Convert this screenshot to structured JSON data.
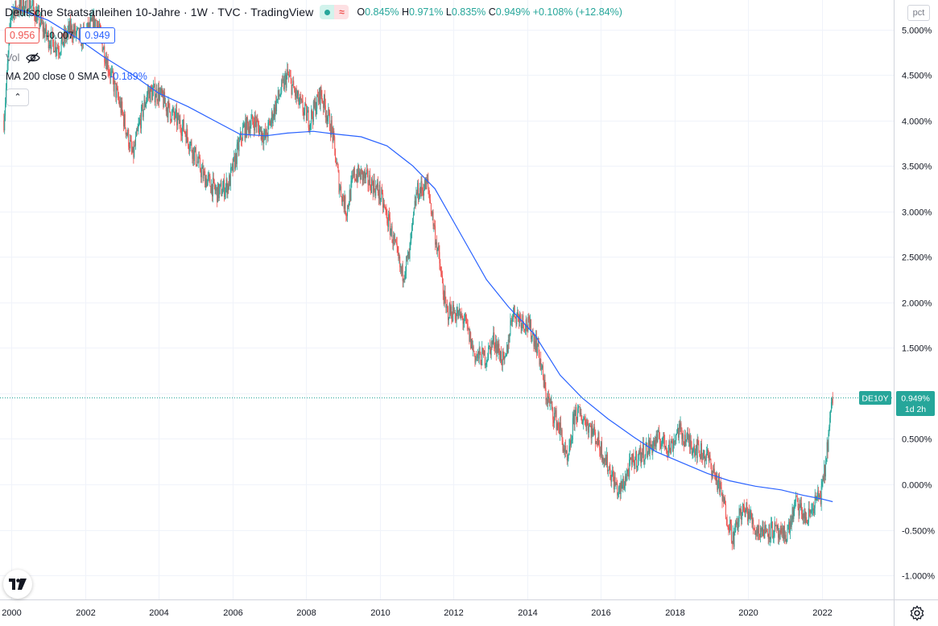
{
  "header": {
    "title": "Deutsche Staatsanleihen 10-Jahre · 1W · TVC · TradingView",
    "ohlc": {
      "o_label": "O",
      "o": "0.845%",
      "h_label": "H",
      "h": "0.971%",
      "l_label": "L",
      "l": "0.835%",
      "c_label": "C",
      "c": "0.949%",
      "change": "+0.108% (+12.84%)"
    }
  },
  "price_row": {
    "sell": "0.956",
    "spread": "-0.007",
    "buy": "0.949"
  },
  "volume": {
    "label": "Vol"
  },
  "indicator": {
    "label": "MA 200 close 0 SMA 5",
    "value": "-0.189%"
  },
  "axis_unit": "pct",
  "last_price": {
    "symbol": "DE10Y",
    "value": "0.949%",
    "countdown": "1d 2h"
  },
  "colors": {
    "up": "#26a69a",
    "down": "#ef5350",
    "ma": "#2962ff",
    "grid": "#f0f3fa",
    "label_bg": "#26a69a"
  },
  "icons": {
    "logo": "tradingview-logo-icon",
    "settings": "gear-icon",
    "hide": "eye-off-icon",
    "collapse": "chevron-up-icon"
  },
  "chart_data": {
    "type": "line",
    "title": "Deutsche Staatsanleihen 10-Jahre",
    "ylabel": "pct",
    "ylim": [
      -1.2,
      5.4
    ],
    "xlim": [
      2000.0,
      2023.0
    ],
    "y_ticks": [
      "5.000%",
      "4.500%",
      "4.000%",
      "3.500%",
      "3.000%",
      "2.500%",
      "2.000%",
      "1.500%",
      "1.000%",
      "0.500%",
      "0.000%",
      "-0.500%",
      "-1.000%"
    ],
    "y_tick_values": [
      5.0,
      4.5,
      4.0,
      3.5,
      3.0,
      2.5,
      2.0,
      1.5,
      1.0,
      0.5,
      0.0,
      -0.5,
      -1.0
    ],
    "x_ticks": [
      "2000",
      "2002",
      "2004",
      "2006",
      "2008",
      "2010",
      "2012",
      "2014",
      "2016",
      "2018",
      "2020",
      "2022"
    ],
    "x_tick_values": [
      2000,
      2002,
      2004,
      2006,
      2008,
      2010,
      2012,
      2014,
      2016,
      2018,
      2020,
      2022
    ],
    "series": [
      {
        "name": "DE10Y",
        "style": "candles",
        "x": [
          1999.8,
          2000.0,
          2000.5,
          2001.0,
          2001.3,
          2001.6,
          2001.9,
          2002.3,
          2002.7,
          2003.0,
          2003.3,
          2003.5,
          2003.7,
          2004.0,
          2004.3,
          2004.7,
          2005.0,
          2005.2,
          2005.6,
          2005.9,
          2006.3,
          2006.6,
          2006.9,
          2007.2,
          2007.5,
          2007.8,
          2008.1,
          2008.4,
          2008.7,
          2008.9,
          2009.1,
          2009.3,
          2009.5,
          2009.8,
          2010.0,
          2010.3,
          2010.6,
          2010.8,
          2011.0,
          2011.3,
          2011.6,
          2011.8,
          2012.0,
          2012.3,
          2012.6,
          2012.9,
          2013.1,
          2013.4,
          2013.6,
          2013.9,
          2014.1,
          2014.3,
          2014.5,
          2014.7,
          2014.9,
          2015.1,
          2015.3,
          2015.6,
          2015.9,
          2016.2,
          2016.5,
          2016.8,
          2017.0,
          2017.3,
          2017.6,
          2017.9,
          2018.1,
          2018.3,
          2018.6,
          2018.9,
          2019.2,
          2019.4,
          2019.6,
          2019.8,
          2020.0,
          2020.2,
          2020.4,
          2020.7,
          2020.9,
          2021.1,
          2021.3,
          2021.6,
          2021.8,
          2022.0,
          2022.1,
          2022.2,
          2022.3
        ],
        "y": [
          4.0,
          5.2,
          5.3,
          4.9,
          4.8,
          5.0,
          4.9,
          5.1,
          4.5,
          4.1,
          3.6,
          4.0,
          4.3,
          4.3,
          4.1,
          3.9,
          3.6,
          3.4,
          3.2,
          3.3,
          3.9,
          4.0,
          3.8,
          4.2,
          4.5,
          4.2,
          4.0,
          4.3,
          3.9,
          3.3,
          3.0,
          3.4,
          3.4,
          3.3,
          3.2,
          2.8,
          2.3,
          2.5,
          3.2,
          3.3,
          2.5,
          1.9,
          1.9,
          1.8,
          1.4,
          1.4,
          1.6,
          1.3,
          1.9,
          1.8,
          1.7,
          1.5,
          1.0,
          0.8,
          0.6,
          0.2,
          0.8,
          0.7,
          0.5,
          0.2,
          -0.1,
          0.2,
          0.3,
          0.4,
          0.5,
          0.4,
          0.6,
          0.5,
          0.4,
          0.3,
          0.0,
          -0.3,
          -0.6,
          -0.3,
          -0.3,
          -0.5,
          -0.5,
          -0.5,
          -0.6,
          -0.5,
          -0.2,
          -0.4,
          -0.2,
          -0.1,
          0.2,
          0.6,
          0.95
        ]
      },
      {
        "name": "MA 200 close 0 SMA 5",
        "style": "line",
        "x": [
          2000.0,
          2001.0,
          2001.8,
          2002.5,
          2003.3,
          2004.0,
          2004.8,
          2005.5,
          2006.2,
          2006.9,
          2007.5,
          2008.2,
          2008.8,
          2009.5,
          2010.2,
          2010.9,
          2011.5,
          2012.2,
          2012.9,
          2013.5,
          2014.2,
          2014.9,
          2015.5,
          2016.2,
          2016.9,
          2017.5,
          2018.2,
          2018.9,
          2019.5,
          2020.2,
          2020.9,
          2021.5,
          2022.0,
          2022.3
        ],
        "y": [
          5.25,
          5.1,
          4.9,
          4.7,
          4.5,
          4.3,
          4.15,
          4.0,
          3.85,
          3.83,
          3.86,
          3.88,
          3.85,
          3.82,
          3.72,
          3.5,
          3.25,
          2.75,
          2.25,
          1.95,
          1.65,
          1.2,
          0.95,
          0.72,
          0.52,
          0.36,
          0.24,
          0.12,
          0.04,
          -0.02,
          -0.06,
          -0.12,
          -0.16,
          -0.19
        ]
      }
    ]
  }
}
